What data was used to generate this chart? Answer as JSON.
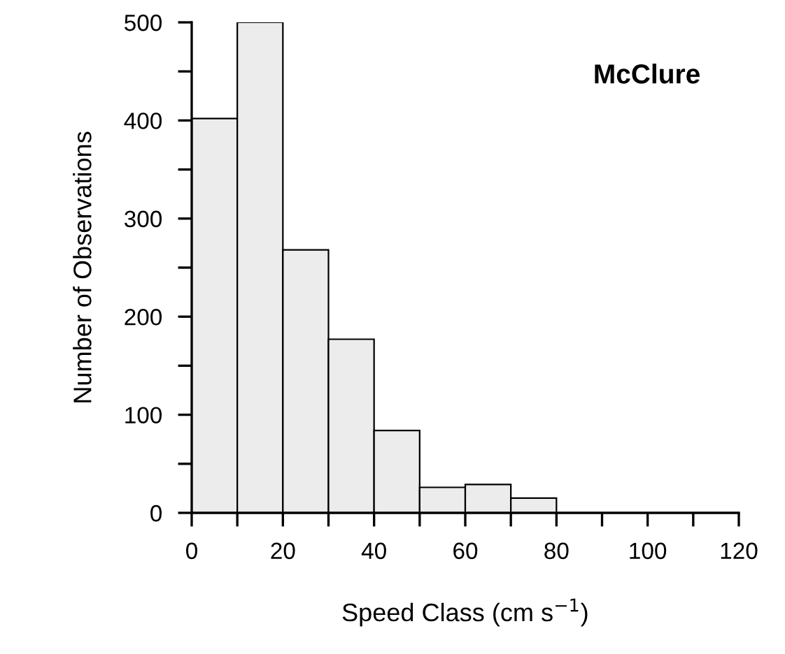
{
  "chart_data": {
    "type": "histogram",
    "xlabel": "Speed Class (cm s$^{−1}$)",
    "ylabel": "Number of Observations",
    "annotations": [
      "McClure"
    ],
    "bins": [
      0,
      10,
      20,
      30,
      40,
      50,
      60,
      70,
      80
    ],
    "values": [
      402,
      500,
      268,
      177,
      84,
      26,
      29,
      15
    ],
    "color": "#ececec",
    "xlim": [
      0,
      120
    ],
    "xticks": [
      0,
      {
        "value": 10,
        "label": null
      },
      20,
      {
        "value": 30,
        "label": null
      },
      40,
      {
        "value": 50,
        "label": null
      },
      60,
      {
        "value": 70,
        "label": null
      },
      80,
      {
        "value": 90,
        "label": null
      },
      100,
      {
        "value": 110,
        "label": null
      },
      120
    ],
    "ylim": [
      0,
      500
    ],
    "yticks": [
      0,
      {
        "value": 50,
        "label": null
      },
      100,
      {
        "value": 150,
        "label": null
      },
      200,
      {
        "value": 250,
        "label": null
      },
      300,
      {
        "value": 350,
        "label": null
      },
      400,
      {
        "value": 450,
        "label": null
      },
      500
    ],
    "grid": false
  }
}
